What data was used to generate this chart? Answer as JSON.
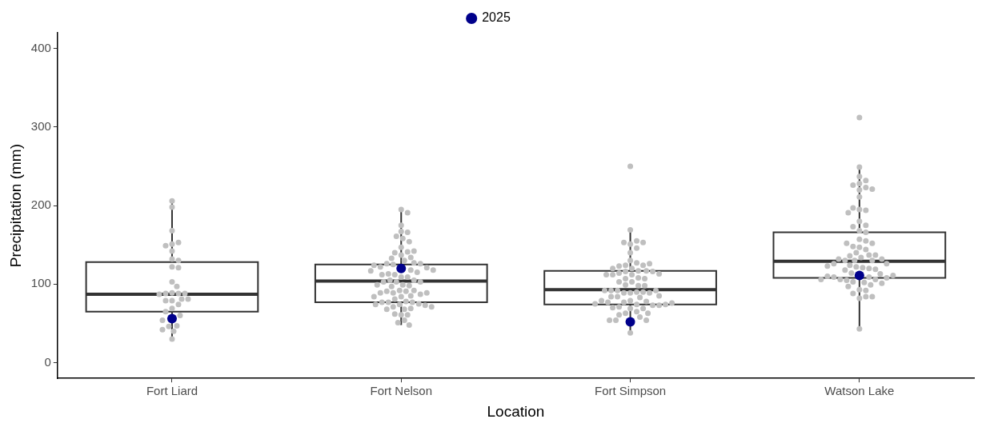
{
  "chart_data": {
    "type": "box",
    "xlabel": "Location",
    "ylabel": "Precipitation (mm)",
    "categories": [
      "Fort Liard",
      "Fort Nelson",
      "Fort Simpson",
      "Watson Lake"
    ],
    "ylim": [
      -20,
      420
    ],
    "yticks": [
      0,
      100,
      200,
      300,
      400
    ],
    "grid": false,
    "legend": "top",
    "marker": "circle",
    "series": [
      {
        "type": "box",
        "color": "#333333",
        "boxes": [
          {
            "low": 31,
            "q1": 65,
            "median": 87,
            "q3": 128,
            "high": 206
          },
          {
            "low": 48,
            "q1": 77,
            "median": 104,
            "q3": 125,
            "high": 195
          },
          {
            "low": 38,
            "q1": 74,
            "median": 93,
            "q3": 117,
            "high": 168
          },
          {
            "low": 44,
            "q1": 108,
            "median": 129,
            "q3": 166,
            "high": 248
          }
        ]
      },
      {
        "type": "scatter",
        "color": "#bfbfbf",
        "x": [
          "Fort Liard",
          "Fort Liard",
          "Fort Liard",
          "Fort Liard",
          "Fort Liard",
          "Fort Liard",
          "Fort Liard",
          "Fort Liard",
          "Fort Liard",
          "Fort Liard",
          "Fort Liard",
          "Fort Liard",
          "Fort Liard",
          "Fort Liard",
          "Fort Liard",
          "Fort Liard",
          "Fort Liard",
          "Fort Liard",
          "Fort Liard",
          "Fort Liard",
          "Fort Liard",
          "Fort Liard",
          "Fort Liard",
          "Fort Liard",
          "Fort Liard",
          "Fort Liard",
          "Fort Liard",
          "Fort Liard",
          "Fort Liard",
          "Fort Liard",
          "Fort Liard",
          "Fort Liard",
          "Fort Nelson",
          "Fort Nelson",
          "Fort Nelson",
          "Fort Nelson",
          "Fort Nelson",
          "Fort Nelson",
          "Fort Nelson",
          "Fort Nelson",
          "Fort Nelson",
          "Fort Nelson",
          "Fort Nelson",
          "Fort Nelson",
          "Fort Nelson",
          "Fort Nelson",
          "Fort Nelson",
          "Fort Nelson",
          "Fort Nelson",
          "Fort Nelson",
          "Fort Nelson",
          "Fort Nelson",
          "Fort Nelson",
          "Fort Nelson",
          "Fort Nelson",
          "Fort Nelson",
          "Fort Nelson",
          "Fort Nelson",
          "Fort Nelson",
          "Fort Nelson",
          "Fort Nelson",
          "Fort Nelson",
          "Fort Nelson",
          "Fort Nelson",
          "Fort Nelson",
          "Fort Nelson",
          "Fort Nelson",
          "Fort Nelson",
          "Fort Nelson",
          "Fort Nelson",
          "Fort Nelson",
          "Fort Nelson",
          "Fort Nelson",
          "Fort Nelson",
          "Fort Nelson",
          "Fort Nelson",
          "Fort Nelson",
          "Fort Nelson",
          "Fort Nelson",
          "Fort Nelson",
          "Fort Nelson",
          "Fort Nelson",
          "Fort Nelson",
          "Fort Nelson",
          "Fort Nelson",
          "Fort Nelson",
          "Fort Nelson",
          "Fort Nelson",
          "Fort Nelson",
          "Fort Nelson",
          "Fort Nelson",
          "Fort Nelson",
          "Fort Nelson",
          "Fort Nelson",
          "Fort Nelson",
          "Fort Nelson",
          "Fort Nelson",
          "Fort Nelson",
          "Fort Nelson",
          "Fort Nelson",
          "Fort Nelson",
          "Fort Nelson",
          "Fort Nelson",
          "Fort Nelson",
          "Fort Simpson",
          "Fort Simpson",
          "Fort Simpson",
          "Fort Simpson",
          "Fort Simpson",
          "Fort Simpson",
          "Fort Simpson",
          "Fort Simpson",
          "Fort Simpson",
          "Fort Simpson",
          "Fort Simpson",
          "Fort Simpson",
          "Fort Simpson",
          "Fort Simpson",
          "Fort Simpson",
          "Fort Simpson",
          "Fort Simpson",
          "Fort Simpson",
          "Fort Simpson",
          "Fort Simpson",
          "Fort Simpson",
          "Fort Simpson",
          "Fort Simpson",
          "Fort Simpson",
          "Fort Simpson",
          "Fort Simpson",
          "Fort Simpson",
          "Fort Simpson",
          "Fort Simpson",
          "Fort Simpson",
          "Fort Simpson",
          "Fort Simpson",
          "Fort Simpson",
          "Fort Simpson",
          "Fort Simpson",
          "Fort Simpson",
          "Fort Simpson",
          "Fort Simpson",
          "Fort Simpson",
          "Fort Simpson",
          "Fort Simpson",
          "Fort Simpson",
          "Fort Simpson",
          "Fort Simpson",
          "Fort Simpson",
          "Fort Simpson",
          "Fort Simpson",
          "Fort Simpson",
          "Fort Simpson",
          "Fort Simpson",
          "Fort Simpson",
          "Fort Simpson",
          "Fort Simpson",
          "Fort Simpson",
          "Fort Simpson",
          "Fort Simpson",
          "Fort Simpson",
          "Fort Simpson",
          "Fort Simpson",
          "Fort Simpson",
          "Fort Simpson",
          "Fort Simpson",
          "Fort Simpson",
          "Fort Simpson",
          "Fort Simpson",
          "Fort Simpson",
          "Fort Simpson",
          "Fort Simpson",
          "Fort Simpson",
          "Fort Simpson",
          "Watson Lake",
          "Watson Lake",
          "Watson Lake",
          "Watson Lake",
          "Watson Lake",
          "Watson Lake",
          "Watson Lake",
          "Watson Lake",
          "Watson Lake",
          "Watson Lake",
          "Watson Lake",
          "Watson Lake",
          "Watson Lake",
          "Watson Lake",
          "Watson Lake",
          "Watson Lake",
          "Watson Lake",
          "Watson Lake",
          "Watson Lake",
          "Watson Lake",
          "Watson Lake",
          "Watson Lake",
          "Watson Lake",
          "Watson Lake",
          "Watson Lake",
          "Watson Lake",
          "Watson Lake",
          "Watson Lake",
          "Watson Lake",
          "Watson Lake",
          "Watson Lake",
          "Watson Lake",
          "Watson Lake",
          "Watson Lake",
          "Watson Lake",
          "Watson Lake",
          "Watson Lake",
          "Watson Lake",
          "Watson Lake",
          "Watson Lake",
          "Watson Lake",
          "Watson Lake",
          "Watson Lake",
          "Watson Lake",
          "Watson Lake",
          "Watson Lake",
          "Watson Lake",
          "Watson Lake",
          "Watson Lake",
          "Watson Lake",
          "Watson Lake",
          "Watson Lake",
          "Watson Lake",
          "Watson Lake",
          "Watson Lake",
          "Watson Lake",
          "Watson Lake",
          "Watson Lake",
          "Watson Lake",
          "Watson Lake",
          "Watson Lake",
          "Watson Lake",
          "Watson Lake",
          "Watson Lake",
          "Watson Lake",
          "Watson Lake",
          "Watson Lake",
          "Watson Lake"
        ],
        "values": [
          206,
          198,
          168,
          151,
          153,
          149,
          142,
          132,
          130,
          122,
          121,
          103,
          97,
          89,
          88,
          88,
          88,
          87,
          79,
          81,
          81,
          79,
          74,
          69,
          60,
          65,
          54,
          47,
          46,
          42,
          40,
          30,
          195,
          191,
          175,
          167,
          166,
          161,
          158,
          154,
          147,
          137,
          141,
          140,
          142,
          134,
          133,
          130,
          125,
          127,
          126,
          126,
          122,
          118,
          121,
          124,
          112,
          113,
          115,
          118,
          117,
          109,
          109,
          112,
          103,
          105,
          105,
          103,
          103,
          99,
          98,
          97,
          99,
          92,
          91,
          89,
          92,
          91,
          87,
          89,
          89,
          84,
          85,
          84,
          81,
          78,
          77,
          77,
          74,
          75,
          77,
          73,
          71,
          74,
          68,
          69,
          68,
          71,
          61,
          61,
          62,
          54,
          51,
          48,
          250,
          169,
          151,
          155,
          153,
          153,
          146,
          140,
          130,
          127,
          124,
          123,
          120,
          124,
          116,
          120,
          126,
          117,
          117,
          112,
          114,
          107,
          112,
          108,
          116,
          103,
          103,
          107,
          112,
          113,
          99,
          98,
          98,
          89,
          90,
          89,
          90,
          92,
          89,
          92,
          92,
          92,
          83,
          84,
          84,
          85,
          79,
          77,
          74,
          69,
          78,
          71,
          69,
          65,
          70,
          73,
          77,
          73,
          79,
          74,
          75,
          76,
          63,
          61,
          58,
          63,
          54,
          54,
          54,
          38,
          312,
          249,
          237,
          232,
          228,
          223,
          226,
          220,
          221,
          211,
          195,
          194,
          197,
          191,
          180,
          175,
          168,
          166,
          173,
          157,
          155,
          147,
          148,
          152,
          152,
          144,
          140,
          134,
          137,
          136,
          137,
          130,
          130,
          130,
          132,
          132,
          121,
          124,
          122,
          120,
          126,
          126,
          118,
          119,
          123,
          109,
          114,
          113,
          103,
          105,
          106,
          106,
          102,
          109,
          108,
          110,
          111,
          106,
          99,
          93,
          92,
          97,
          101,
          82,
          84,
          88,
          84,
          43
        ]
      },
      {
        "type": "scatter",
        "name": "2025",
        "color": "#00008b",
        "x": [
          "Fort Liard",
          "Fort Nelson",
          "Fort Simpson",
          "Watson Lake"
        ],
        "values": [
          56,
          120,
          52,
          111
        ]
      }
    ]
  }
}
